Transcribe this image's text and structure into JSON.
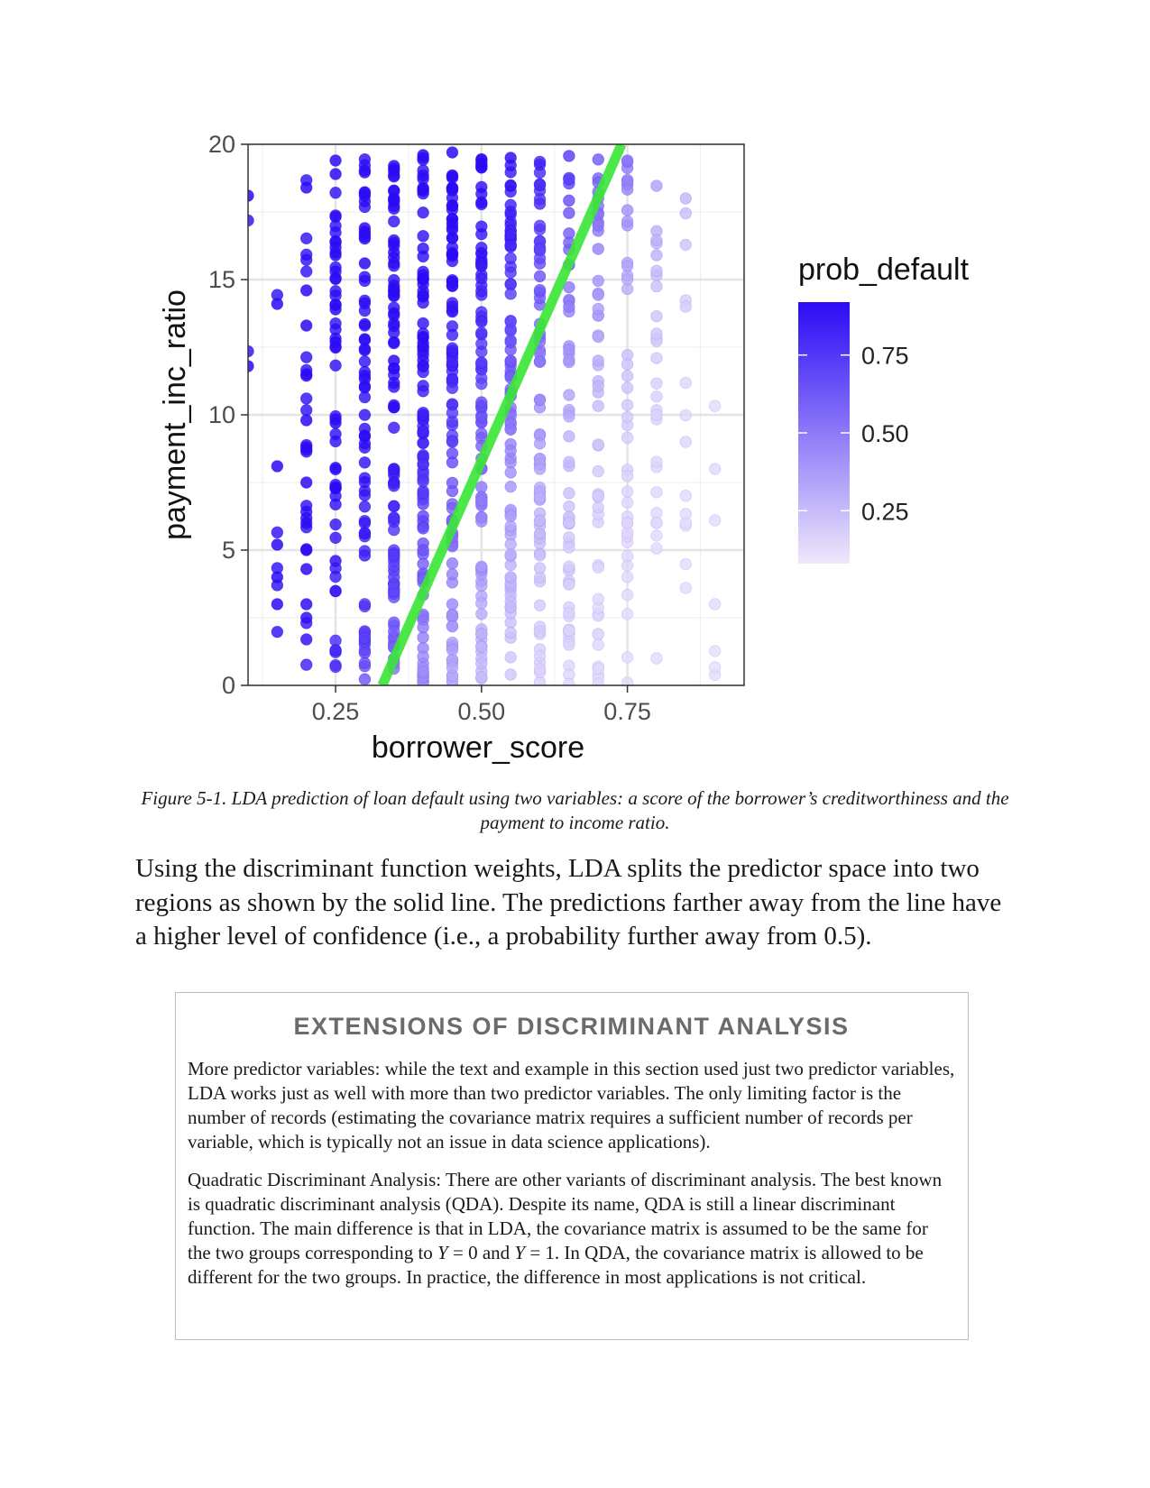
{
  "chart_data": {
    "type": "scatter",
    "xlabel": "borrower_score",
    "ylabel": "payment_inc_ratio",
    "xlim": [
      0.1,
      0.95
    ],
    "ylim": [
      0,
      20
    ],
    "xticks": [
      "0.25",
      "0.50",
      "0.75"
    ],
    "xtick_values": [
      0.25,
      0.5,
      0.75
    ],
    "yticks": [
      "0",
      "5",
      "10",
      "15",
      "20"
    ],
    "ytick_values": [
      0,
      5,
      10,
      15,
      20
    ],
    "grid": true,
    "legend": {
      "title": "prob_default",
      "position": "right",
      "labels": [
        "0.75",
        "0.50",
        "0.25"
      ],
      "label_values": [
        0.75,
        0.5,
        0.25
      ],
      "color_low": "#efe8fb",
      "color_high": "#2b0bf5"
    },
    "decision_line": {
      "color": "#3de53a",
      "points": [
        [
          0.33,
          0
        ],
        [
          0.74,
          20
        ]
      ]
    },
    "x_columns": [
      0.1,
      0.15,
      0.2,
      0.25,
      0.3,
      0.35,
      0.4,
      0.45,
      0.5,
      0.55,
      0.6,
      0.65,
      0.7,
      0.75,
      0.8,
      0.85,
      0.9
    ],
    "sample_points": [
      [
        0.1,
        18.1
      ],
      [
        0.1,
        11.8
      ],
      [
        0.15,
        14.1
      ],
      [
        0.15,
        8.1
      ],
      [
        0.15,
        5.2
      ],
      [
        0.15,
        4.0
      ],
      [
        0.15,
        3.0
      ],
      [
        0.2,
        18.4
      ],
      [
        0.2,
        14.6
      ],
      [
        0.2,
        13.3
      ],
      [
        0.2,
        11.5
      ],
      [
        0.2,
        9.8
      ],
      [
        0.2,
        8.8
      ],
      [
        0.2,
        7.5
      ],
      [
        0.2,
        6.0
      ],
      [
        0.2,
        5.0
      ],
      [
        0.2,
        4.3
      ],
      [
        0.2,
        3.0
      ],
      [
        0.2,
        2.5
      ],
      [
        0.2,
        1.7
      ],
      [
        0.25,
        19.4
      ],
      [
        0.25,
        18.9
      ],
      [
        0.25,
        15.9
      ],
      [
        0.25,
        13.9
      ],
      [
        0.25,
        12.7
      ],
      [
        0.25,
        9.7
      ],
      [
        0.25,
        7.3
      ],
      [
        0.25,
        4.6
      ],
      [
        0.25,
        1.3
      ],
      [
        0.3,
        18.1
      ],
      [
        0.3,
        16.9
      ],
      [
        0.3,
        15.6
      ],
      [
        0.3,
        9.2
      ],
      [
        0.3,
        4.8
      ],
      [
        0.3,
        1.2
      ],
      [
        0.35,
        19.2
      ],
      [
        0.35,
        18.0
      ],
      [
        0.35,
        16.0
      ],
      [
        0.35,
        12.0
      ],
      [
        0.35,
        8.0
      ],
      [
        0.35,
        4.0
      ],
      [
        0.4,
        19.6
      ],
      [
        0.4,
        15.0
      ],
      [
        0.4,
        10.0
      ],
      [
        0.4,
        5.0
      ],
      [
        0.4,
        0.5
      ],
      [
        0.45,
        19.7
      ],
      [
        0.45,
        14.0
      ],
      [
        0.45,
        9.0
      ],
      [
        0.45,
        3.0
      ],
      [
        0.5,
        19.3
      ],
      [
        0.5,
        15.5
      ],
      [
        0.5,
        8.0
      ],
      [
        0.5,
        0.8
      ],
      [
        0.55,
        19.5
      ],
      [
        0.55,
        12.0
      ],
      [
        0.55,
        4.0
      ],
      [
        0.55,
        0.4
      ],
      [
        0.6,
        17.8
      ],
      [
        0.6,
        13.0
      ],
      [
        0.6,
        8.0
      ],
      [
        0.6,
        0.6
      ],
      [
        0.65,
        18.7
      ],
      [
        0.65,
        14.0
      ],
      [
        0.65,
        6.0
      ],
      [
        0.65,
        1.5
      ],
      [
        0.7,
        17.0
      ],
      [
        0.7,
        12.0
      ],
      [
        0.7,
        7.0
      ],
      [
        0.7,
        1.5
      ],
      [
        0.75,
        19.4
      ],
      [
        0.75,
        15.5
      ],
      [
        0.75,
        11.0
      ],
      [
        0.75,
        6.0
      ],
      [
        0.75,
        0.1
      ],
      [
        0.8,
        15.9
      ],
      [
        0.8,
        13.0
      ],
      [
        0.8,
        10.0
      ],
      [
        0.8,
        6.0
      ],
      [
        0.8,
        1.0
      ],
      [
        0.85,
        18.0
      ],
      [
        0.85,
        14.0
      ],
      [
        0.85,
        9.0
      ],
      [
        0.85,
        6.0
      ],
      [
        0.85,
        3.6
      ],
      [
        0.9,
        8.0
      ],
      [
        0.9,
        6.1
      ],
      [
        0.9,
        3.0
      ]
    ]
  },
  "caption": "Figure 5-1. LDA prediction of loan default using two variables: a score of the borrower’s creditworthiness and the payment to income ratio.",
  "paragraph": "Using the discriminant function weights, LDA splits the predictor space into two regions as shown by the solid line. The predictions farther away from the line have a higher level of confidence (i.e., a probability further away from 0.5).",
  "sidebar": {
    "title": "EXTENSIONS OF DISCRIMINANT ANALYSIS",
    "p1": "More predictor variables: while the text and example in this section used just two predictor variables, LDA works just as well with more than two predictor variables. The only limiting factor is the number of records (estimating the covariance matrix requires a sufficient number of records per variable, which is typically not an issue in data science applications).",
    "p2_a": "Quadratic Discriminant Analysis: There are other variants of discriminant analysis. The best known is quadratic discriminant analysis (QDA). Despite its name, QDA is still a linear discriminant function. The main difference is that in LDA, the covariance matrix is assumed to be the same for the two groups corresponding to ",
    "p2_var1": "Y",
    "p2_b": " = 0 and ",
    "p2_var2": "Y",
    "p2_c": " = 1. In QDA, the covariance matrix is allowed to be different for the two groups. In practice, the difference in most applications is not critical."
  }
}
